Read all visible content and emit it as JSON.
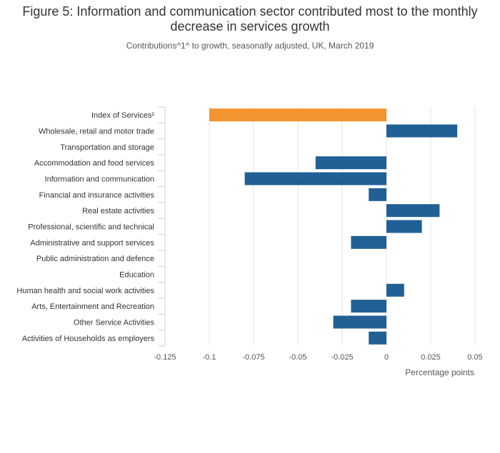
{
  "chart_data": {
    "type": "bar",
    "orientation": "horizontal",
    "title": "Figure 5: Information and communication sector contributed most to the monthly decrease in services growth",
    "subtitle": "Contributions^1^ to growth, seasonally adjusted, UK, March 2019",
    "xlabel": "Percentage points",
    "ylabel": "",
    "xlim": [
      -0.125,
      0.05
    ],
    "xticks": [
      -0.125,
      -0.1,
      -0.075,
      -0.05,
      -0.025,
      0,
      0.025,
      0.05
    ],
    "xtick_labels": [
      "-0.125",
      "-0.1",
      "-0.075",
      "-0.05",
      "-0.025",
      "0",
      "0.025",
      "0.05"
    ],
    "grid": true,
    "categories": [
      "Index of Services²",
      "Wholesale, retail and motor trade",
      "Transportation and storage",
      "Accommodation and food services",
      "Information and communication",
      "Financial and insurance activities",
      "Real estate activities",
      "Professional, scientific and technical",
      "Administrative and support services",
      "Public administration and defence",
      "Education",
      "Human health and social work activities",
      "Arts, Entertainment and Recreation",
      "Other Service Activities",
      "Activities of Households as employers"
    ],
    "values": [
      -0.1,
      0.04,
      0,
      -0.04,
      -0.08,
      -0.01,
      0.03,
      0.02,
      -0.02,
      0,
      0,
      0.01,
      -0.02,
      -0.03,
      -0.01
    ],
    "highlight_index": 0,
    "colors": {
      "highlight": "#f39431",
      "bar": "#206095",
      "grid": "#e6e6e6",
      "axis": "#d0d0d0"
    }
  }
}
